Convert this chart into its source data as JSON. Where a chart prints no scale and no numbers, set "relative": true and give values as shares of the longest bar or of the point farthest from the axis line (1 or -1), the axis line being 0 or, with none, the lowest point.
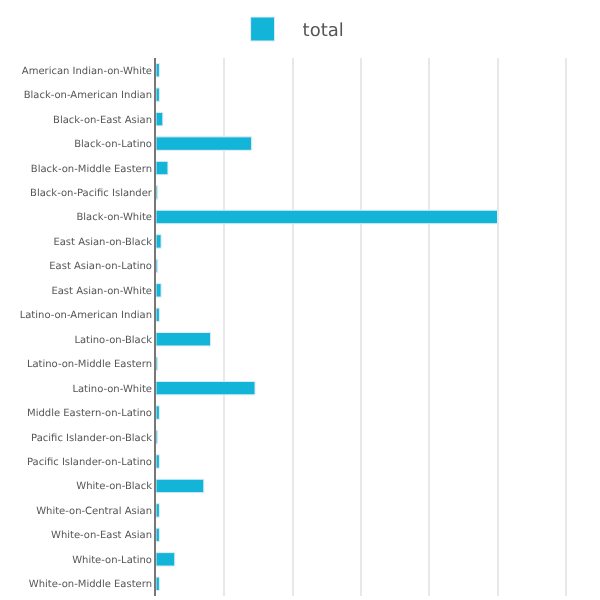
{
  "chart_data": {
    "type": "bar",
    "orientation": "horizontal",
    "relative": true,
    "grid": "x",
    "legend": "top",
    "categories": [
      "American Indian-on-White",
      "Black-on-American Indian",
      "Black-on-East Asian",
      "Black-on-Latino",
      "Black-on-Middle Eastern",
      "Black-on-Pacific Islander",
      "Black-on-White",
      "East Asian-on-Black",
      "East Asian-on-Latino",
      "East Asian-on-White",
      "Latino-on-American Indian",
      "Latino-on-Black",
      "Latino-on-Middle Eastern",
      "Latino-on-White",
      "Middle Eastern-on-Latino",
      "Pacific Islander-on-Black",
      "Pacific Islander-on-Latino",
      "White-on-Black",
      "White-on-Central Asian",
      "White-on-East Asian",
      "White-on-Latino",
      "White-on-Middle Eastern"
    ],
    "series": [
      {
        "name": "total",
        "color": "#12b5d8",
        "values": [
          0.01,
          0.01,
          0.02,
          0.28,
          0.035,
          0.005,
          1,
          0.015,
          0.005,
          0.015,
          0.01,
          0.16,
          0.005,
          0.29,
          0.01,
          0.005,
          0.01,
          0.14,
          0.01,
          0.01,
          0.055,
          0.01
        ]
      }
    ]
  }
}
